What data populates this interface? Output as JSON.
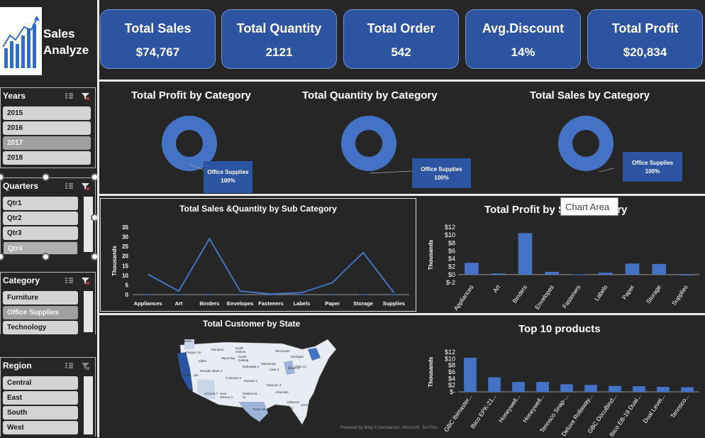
{
  "sidebar": {
    "logo_title_line1": "Sales",
    "logo_title_line2": "Analyze",
    "slicers": {
      "years": {
        "title": "Years",
        "items": [
          "2015",
          "2016",
          "2017",
          "2018"
        ]
      },
      "quarters": {
        "title": "Quarters",
        "items": [
          "Qtr1",
          "Qtr2",
          "Qtr3",
          "Qtr4"
        ]
      },
      "category": {
        "title": "Category",
        "items": [
          "Furniture",
          "Office Supplies",
          "Technology"
        ]
      },
      "region": {
        "title": "Region",
        "items": [
          "Central",
          "East",
          "South",
          "West"
        ]
      }
    }
  },
  "kpis": [
    {
      "title": "Total Sales",
      "value": "$74,767"
    },
    {
      "title": "Total Quantity",
      "value": "2121"
    },
    {
      "title": "Total Order",
      "value": "542"
    },
    {
      "title": "Avg.Discount",
      "value": "14%"
    },
    {
      "title": "Total Profit",
      "value": "$20,834"
    }
  ],
  "tooltip": "Chart Area",
  "map": {
    "title": "Total Customer by State",
    "credit": "Powered by Bing © GeoNames, Microsoft, TomTom",
    "labels": [
      "Washi... 14",
      "Oregon 16",
      "Calif... 125",
      "Nevada 3",
      "Utah 4",
      "Arizona 7",
      "Idaho",
      "Montana",
      "Wyoming",
      "Colorado 5",
      "New Mexico 4",
      "North Dakota",
      "South Dakota",
      "Nebraska 3",
      "Kansas 2",
      "Oklahoma 11",
      "Texas 46",
      "Minnesota",
      "Iowa 4",
      "Missouri 2",
      "Arkansas",
      "Louisiana",
      "Wisconsin",
      "Illinois 5",
      "Ohio 14",
      "Alabama",
      "Georgia",
      "Michigan"
    ]
  },
  "chart_data": [
    {
      "type": "pie",
      "title": "Total Profit by Category",
      "slices": [
        {
          "label": "Office Supplies",
          "value": 100,
          "display": "100%"
        }
      ]
    },
    {
      "type": "pie",
      "title": "Total Quantity by Category",
      "slices": [
        {
          "label": "Office Supplies",
          "value": 100,
          "display": "100%"
        }
      ]
    },
    {
      "type": "pie",
      "title": "Total Sales by Category",
      "slices": [
        {
          "label": "Office Supplies",
          "value": 100,
          "display": "100%"
        }
      ]
    },
    {
      "type": "line",
      "title": "Total Sales &Quantity by Sub Category",
      "ylabel": "Thousands",
      "ylim": [
        0,
        35
      ],
      "yticks": [
        0,
        5,
        10,
        15,
        20,
        25,
        30,
        35
      ],
      "categories": [
        "Appliances",
        "Art",
        "Binders",
        "Envelopes",
        "Fasteners",
        "Labels",
        "Paper",
        "Storage",
        "Supplies"
      ],
      "series": [
        {
          "values": [
            10.5,
            1.8,
            29.0,
            1.8,
            0.3,
            1.0,
            6.2,
            21.8,
            1.0
          ]
        },
        {
          "values": [
            0.1,
            0.1,
            0.3,
            0.1,
            0.1,
            0.1,
            0.3,
            0.2,
            0.1
          ]
        }
      ]
    },
    {
      "type": "bar",
      "title": "Total Profit by Sub Category",
      "ylabel": "Thousands",
      "ylim": [
        -2,
        12
      ],
      "ytick_labels": [
        "$-2",
        "$0",
        "$2",
        "$4",
        "$6",
        "$8",
        "$10",
        "$12"
      ],
      "yticks": [
        -2,
        0,
        2,
        4,
        6,
        8,
        10,
        12
      ],
      "categories": [
        "Appliances",
        "Art",
        "Binders",
        "Envelopes",
        "Fasteners",
        "Labels",
        "Paper",
        "Storage",
        "Supplies"
      ],
      "values": [
        3.0,
        0.3,
        10.5,
        0.7,
        0.05,
        0.5,
        2.8,
        2.7,
        -0.2
      ]
    },
    {
      "type": "bar",
      "title": "Top 10 products",
      "ylabel": "Thousands",
      "ylim": [
        0,
        12
      ],
      "ytick_labels": [
        "$-",
        "$2",
        "$4",
        "$6",
        "$8",
        "$10",
        "$12"
      ],
      "yticks": [
        0,
        2,
        4,
        6,
        8,
        10,
        12
      ],
      "categories": [
        "GBC Ibimaster...",
        "Ibico EPK-21...",
        "Honeywell...",
        "Honeywell...",
        "Tennsco Snap-...",
        "Deluxe Rollaway...",
        "GBC DocuBind...",
        "Ibico EB-19 Dual...",
        "Dual Level...",
        "Tennsco..."
      ],
      "values": [
        10.3,
        4.4,
        3.0,
        3.0,
        2.3,
        2.1,
        1.8,
        1.7,
        1.5,
        1.4
      ]
    }
  ],
  "colors": {
    "accent": "#2c54a0",
    "series": "#4472c4",
    "background": "#262626"
  }
}
